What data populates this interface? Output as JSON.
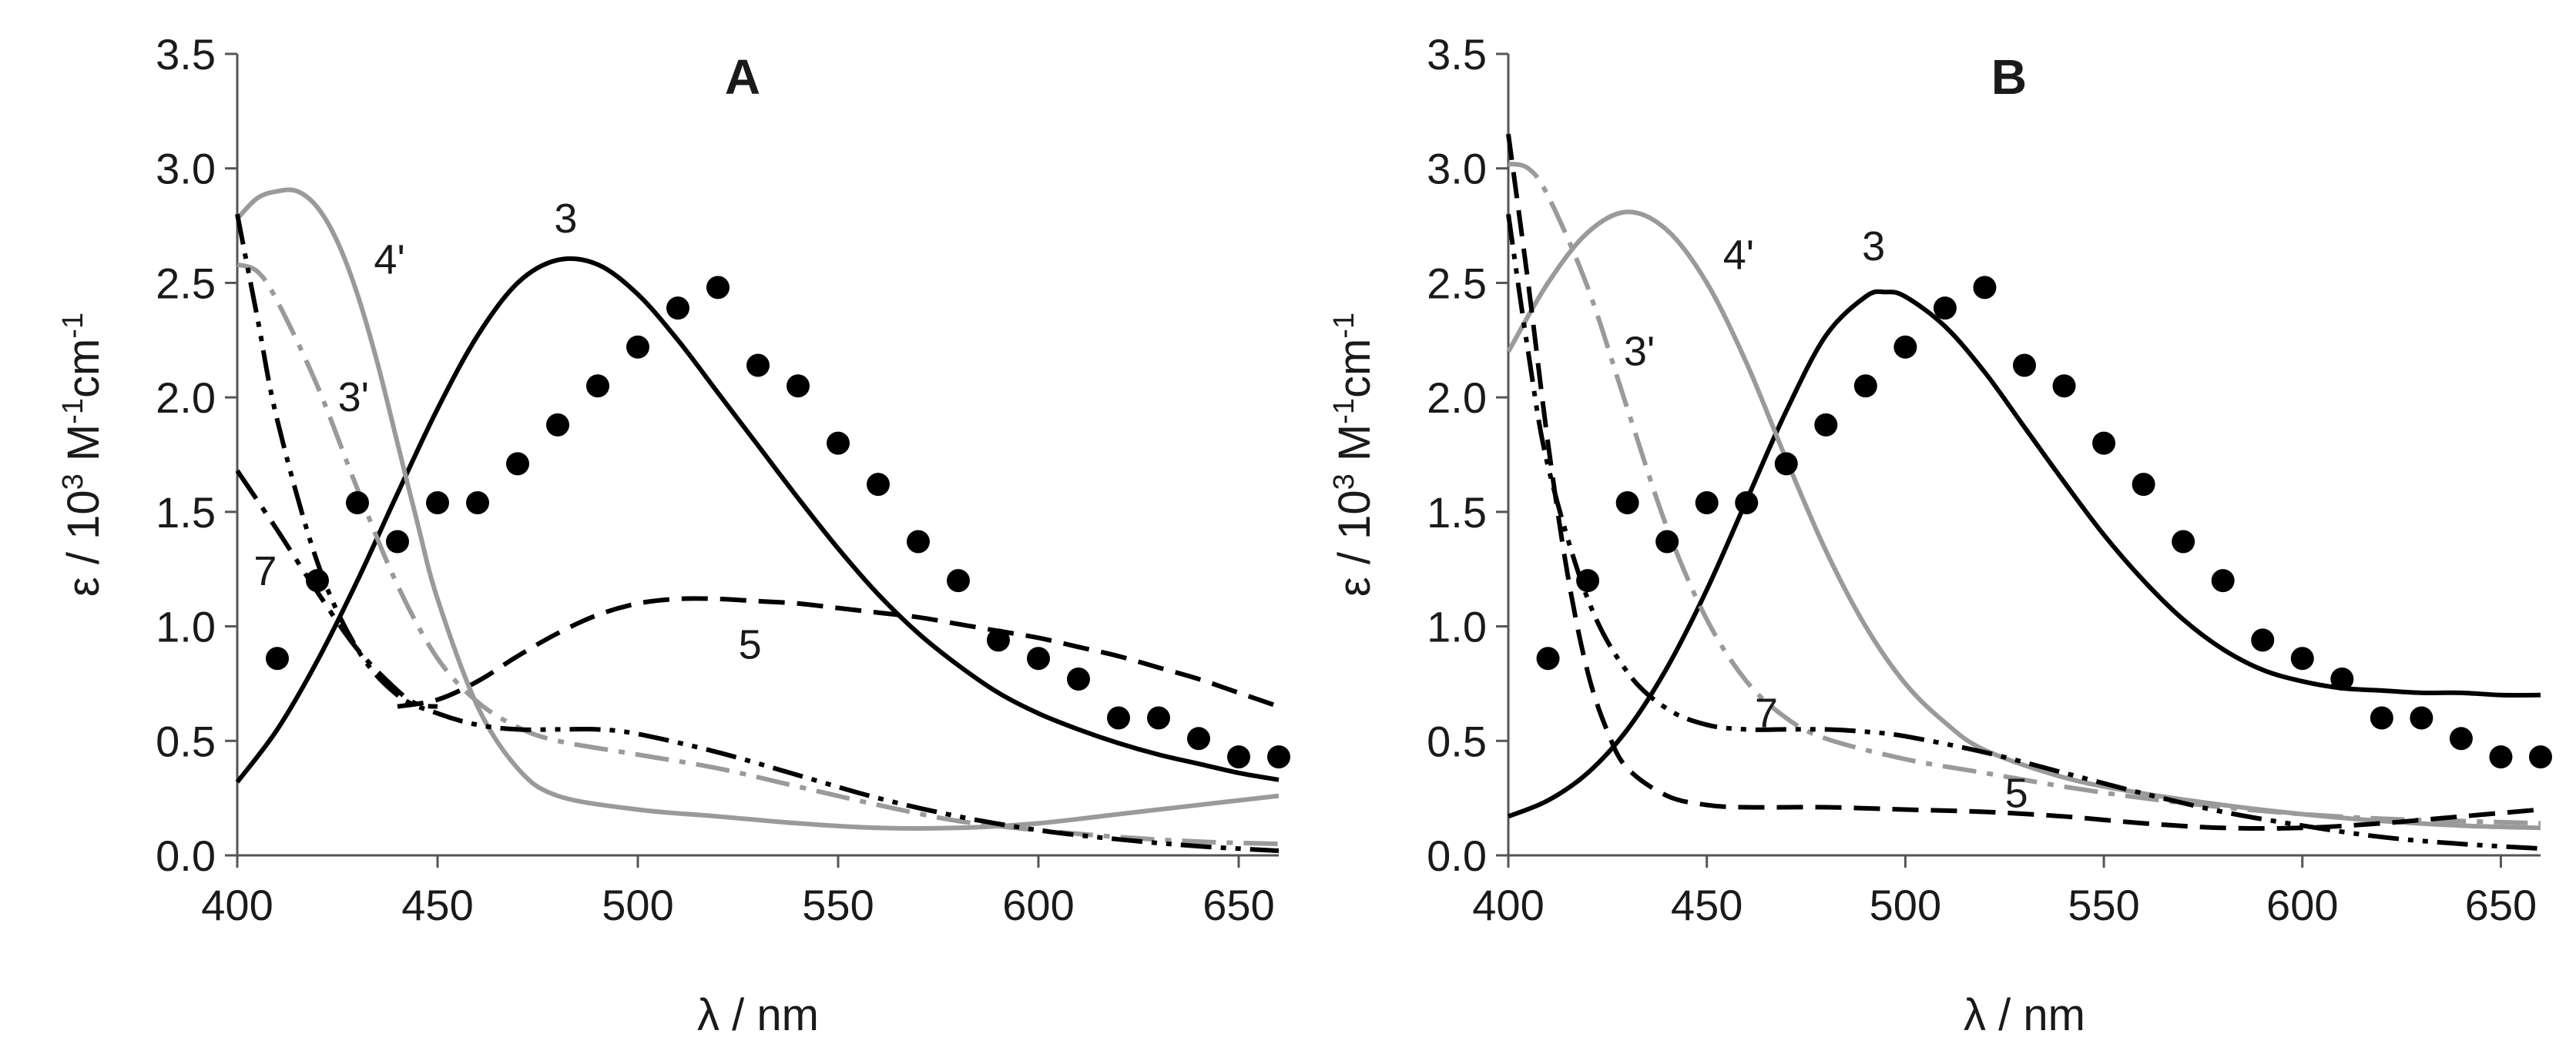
{
  "figure": {
    "description_free": true
  },
  "chart_data": [
    {
      "type": "line",
      "title": "A",
      "xlabel": "λ / nm",
      "ylabel": {
        "pre": "ε / 10",
        "sup1": "3",
        "mid": " M",
        "sup2": "-1",
        "mid2": "cm",
        "sup3": "-1"
      },
      "xlim": [
        400,
        660
      ],
      "ylim": [
        0,
        3.5
      ],
      "xticks": [
        400,
        450,
        500,
        550,
        600,
        650
      ],
      "yticks": [
        0.0,
        0.5,
        1.0,
        1.5,
        2.0,
        2.5,
        3.0,
        3.5
      ],
      "ytick_labels": [
        "0.0",
        "0.5",
        "1.0",
        "1.5",
        "2.0",
        "2.5",
        "3.0",
        "3.5"
      ],
      "grid": false,
      "series": [
        {
          "name": "3",
          "color": "#000000",
          "style": "solid",
          "x": [
            400,
            410,
            420,
            430,
            440,
            450,
            460,
            470,
            480,
            490,
            500,
            510,
            520,
            530,
            540,
            550,
            560,
            570,
            580,
            590,
            600,
            610,
            620,
            630,
            640,
            650,
            660
          ],
          "y": [
            0.32,
            0.55,
            0.85,
            1.2,
            1.58,
            1.95,
            2.27,
            2.5,
            2.6,
            2.58,
            2.45,
            2.25,
            2.02,
            1.79,
            1.56,
            1.34,
            1.14,
            0.97,
            0.83,
            0.71,
            0.62,
            0.55,
            0.49,
            0.44,
            0.4,
            0.36,
            0.33
          ]
        },
        {
          "name": "4'",
          "color": "#9a9a9a",
          "style": "solid",
          "x": [
            400,
            405,
            410,
            415,
            420,
            425,
            430,
            435,
            440,
            445,
            450,
            460,
            470,
            480,
            500,
            520,
            540,
            560,
            580,
            600,
            620,
            640,
            660
          ],
          "y": [
            2.78,
            2.87,
            2.9,
            2.9,
            2.83,
            2.68,
            2.45,
            2.15,
            1.8,
            1.45,
            1.12,
            0.65,
            0.38,
            0.26,
            0.2,
            0.17,
            0.14,
            0.12,
            0.12,
            0.14,
            0.18,
            0.22,
            0.26
          ]
        },
        {
          "name": "3'",
          "color": "#9a9a9a",
          "style": "dashdot",
          "x": [
            400,
            405,
            410,
            420,
            430,
            440,
            450,
            460,
            470,
            480,
            500,
            520,
            540,
            560,
            580,
            600,
            620,
            640,
            660
          ],
          "y": [
            2.58,
            2.55,
            2.42,
            2.05,
            1.6,
            1.18,
            0.86,
            0.67,
            0.56,
            0.5,
            0.44,
            0.38,
            0.3,
            0.22,
            0.15,
            0.11,
            0.08,
            0.06,
            0.05
          ]
        },
        {
          "name": "",
          "color": "#000000",
          "style": "dashdotdot",
          "x": [
            400,
            405,
            410,
            420,
            430,
            440,
            450,
            460,
            470,
            480,
            490,
            500,
            520,
            540,
            560,
            580,
            600,
            620,
            640,
            660
          ],
          "y": [
            2.8,
            2.35,
            1.9,
            1.28,
            0.9,
            0.7,
            0.62,
            0.57,
            0.55,
            0.55,
            0.55,
            0.53,
            0.45,
            0.35,
            0.25,
            0.17,
            0.11,
            0.07,
            0.04,
            0.02
          ]
        },
        {
          "name": "7",
          "color": "#000000",
          "style": "dashdot",
          "x": [
            400,
            410,
            420,
            430,
            440,
            445,
            450
          ],
          "y": [
            1.68,
            1.42,
            1.15,
            0.9,
            0.72,
            0.66,
            0.65
          ]
        },
        {
          "name": "5",
          "color": "#000000",
          "style": "dash",
          "x": [
            440,
            450,
            460,
            470,
            480,
            490,
            500,
            510,
            520,
            530,
            540,
            550,
            560,
            570,
            580,
            590,
            600,
            610,
            620,
            630,
            640,
            650,
            660
          ],
          "y": [
            0.65,
            0.68,
            0.76,
            0.87,
            0.97,
            1.05,
            1.1,
            1.12,
            1.12,
            1.11,
            1.1,
            1.08,
            1.06,
            1.04,
            1.01,
            0.98,
            0.95,
            0.91,
            0.87,
            0.82,
            0.77,
            0.71,
            0.65
          ]
        },
        {
          "name": "dots",
          "color": "#000000",
          "style": "markers",
          "x": [
            410,
            420,
            430,
            440,
            450,
            460,
            470,
            480,
            490,
            500,
            510,
            520,
            530,
            540,
            550,
            560,
            570,
            580,
            590,
            600,
            610,
            620,
            630,
            640,
            650,
            660
          ],
          "y": [
            0.86,
            1.2,
            1.54,
            1.37,
            1.54,
            1.54,
            1.71,
            1.88,
            2.05,
            2.22,
            2.39,
            2.48,
            2.14,
            2.05,
            1.8,
            1.62,
            1.37,
            1.2,
            0.94,
            0.86,
            0.77,
            0.6,
            0.6,
            0.51,
            0.43,
            0.43
          ]
        }
      ],
      "labels": [
        {
          "text": "3",
          "x": 482,
          "y": 2.78
        },
        {
          "text": "4'",
          "x": 438,
          "y": 2.6
        },
        {
          "text": "3'",
          "x": 429,
          "y": 2.0
        },
        {
          "text": "7",
          "x": 407,
          "y": 1.24
        },
        {
          "text": "5",
          "x": 528,
          "y": 0.92
        }
      ]
    },
    {
      "type": "line",
      "title": "B",
      "xlabel": "λ / nm",
      "ylabel": {
        "pre": "ε / 10",
        "sup1": "3",
        "mid": " M",
        "sup2": "-1",
        "mid2": "cm",
        "sup3": "-1"
      },
      "xlim": [
        400,
        660
      ],
      "ylim": [
        0,
        3.5
      ],
      "xticks": [
        400,
        450,
        500,
        550,
        600,
        650
      ],
      "yticks": [
        0.0,
        0.5,
        1.0,
        1.5,
        2.0,
        2.5,
        3.0,
        3.5
      ],
      "ytick_labels": [
        "0.0",
        "0.5",
        "1.0",
        "1.5",
        "2.0",
        "2.5",
        "3.0",
        "3.5"
      ],
      "grid": false,
      "series": [
        {
          "name": "3",
          "color": "#000000",
          "style": "solid",
          "x": [
            400,
            410,
            420,
            430,
            440,
            450,
            460,
            470,
            480,
            490,
            495,
            500,
            510,
            520,
            530,
            540,
            550,
            560,
            570,
            580,
            590,
            600,
            610,
            620,
            630,
            640,
            650,
            660
          ],
          "y": [
            0.17,
            0.24,
            0.36,
            0.55,
            0.82,
            1.16,
            1.55,
            1.94,
            2.27,
            2.44,
            2.46,
            2.44,
            2.31,
            2.11,
            1.87,
            1.63,
            1.4,
            1.2,
            1.03,
            0.9,
            0.81,
            0.76,
            0.73,
            0.72,
            0.71,
            0.71,
            0.7,
            0.7
          ]
        },
        {
          "name": "4'",
          "color": "#9a9a9a",
          "style": "solid",
          "x": [
            400,
            410,
            420,
            430,
            440,
            450,
            460,
            470,
            480,
            490,
            500,
            510,
            520,
            540,
            560,
            580,
            600,
            620,
            640,
            660
          ],
          "y": [
            2.2,
            2.5,
            2.72,
            2.81,
            2.73,
            2.5,
            2.15,
            1.73,
            1.33,
            1.0,
            0.75,
            0.58,
            0.46,
            0.34,
            0.27,
            0.22,
            0.18,
            0.15,
            0.13,
            0.12
          ]
        },
        {
          "name": "3'",
          "color": "#9a9a9a",
          "style": "dashdot",
          "x": [
            400,
            405,
            410,
            420,
            430,
            440,
            450,
            460,
            470,
            480,
            500,
            520,
            540,
            560,
            580,
            600,
            620,
            640,
            660
          ],
          "y": [
            3.02,
            3.0,
            2.88,
            2.48,
            1.95,
            1.43,
            1.03,
            0.76,
            0.6,
            0.51,
            0.42,
            0.36,
            0.3,
            0.25,
            0.21,
            0.18,
            0.16,
            0.15,
            0.14
          ]
        },
        {
          "name": "7",
          "color": "#000000",
          "style": "dashdotdot",
          "x": [
            400,
            405,
            410,
            420,
            430,
            440,
            450,
            460,
            470,
            480,
            490,
            500,
            520,
            540,
            560,
            580,
            600,
            620,
            640,
            660
          ],
          "y": [
            2.8,
            2.2,
            1.7,
            1.12,
            0.8,
            0.64,
            0.57,
            0.55,
            0.55,
            0.55,
            0.54,
            0.52,
            0.45,
            0.36,
            0.27,
            0.19,
            0.13,
            0.08,
            0.05,
            0.03
          ]
        },
        {
          "name": "5",
          "color": "#000000",
          "style": "dash",
          "x": [
            400,
            405,
            410,
            415,
            420,
            425,
            430,
            440,
            450,
            460,
            480,
            500,
            520,
            540,
            560,
            580,
            600,
            620,
            640,
            660
          ],
          "y": [
            3.15,
            2.5,
            1.8,
            1.22,
            0.8,
            0.54,
            0.38,
            0.26,
            0.22,
            0.21,
            0.21,
            0.2,
            0.19,
            0.17,
            0.14,
            0.12,
            0.12,
            0.14,
            0.17,
            0.2
          ]
        },
        {
          "name": "dots",
          "color": "#000000",
          "style": "markers",
          "x": [
            410,
            420,
            430,
            440,
            450,
            460,
            470,
            480,
            490,
            500,
            510,
            520,
            530,
            540,
            550,
            560,
            570,
            580,
            590,
            600,
            610,
            620,
            630,
            640,
            650,
            660
          ],
          "y": [
            0.86,
            1.2,
            1.54,
            1.37,
            1.54,
            1.54,
            1.71,
            1.88,
            2.05,
            2.22,
            2.39,
            2.48,
            2.14,
            2.05,
            1.8,
            1.62,
            1.37,
            1.2,
            0.94,
            0.86,
            0.77,
            0.6,
            0.6,
            0.51,
            0.43,
            0.43
          ]
        }
      ],
      "labels": [
        {
          "text": "3",
          "x": 492,
          "y": 2.66
        },
        {
          "text": "4'",
          "x": 458,
          "y": 2.62
        },
        {
          "text": "3'",
          "x": 433,
          "y": 2.2
        },
        {
          "text": "7",
          "x": 465,
          "y": 0.62
        },
        {
          "text": "5",
          "x": 528,
          "y": 0.27
        }
      ]
    }
  ]
}
